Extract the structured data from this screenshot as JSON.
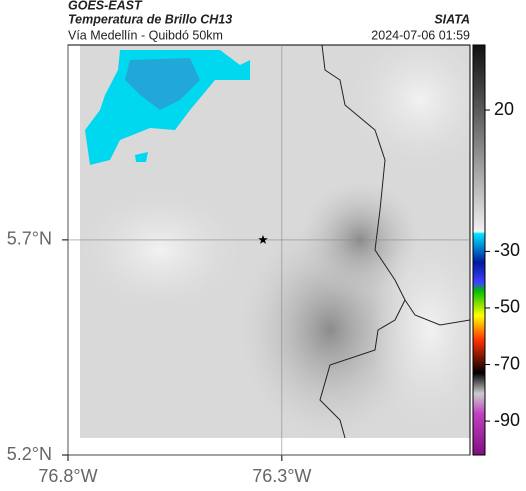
{
  "header": {
    "title": "GOES-EAST",
    "subtitle": "Temperatura de Brillo CH13",
    "source": "SIATA",
    "region": "Vía Medellín - Quibdó 50km",
    "datetime": "2024-07-06 01:59"
  },
  "map": {
    "xlim": [
      -76.8,
      -75.86
    ],
    "ylim": [
      5.2,
      6.153
    ],
    "xticks": [
      {
        "value": -76.8,
        "label": "76.8°W"
      },
      {
        "value": -76.3,
        "label": "76.3°W"
      }
    ],
    "yticks": [
      {
        "value": 5.7,
        "label": "5.7°N"
      },
      {
        "value": 5.2,
        "label": "5.2°N"
      }
    ],
    "marker": {
      "lon": -76.344,
      "lat": 5.7
    }
  },
  "colorbar": {
    "lim": [
      -102,
      43
    ],
    "ticks": [
      20,
      -30,
      -50,
      -70,
      -90
    ]
  }
}
